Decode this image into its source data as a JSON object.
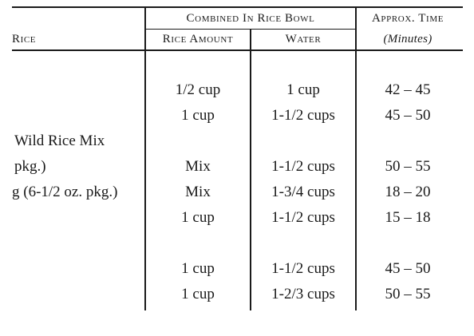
{
  "header": {
    "rice": "Rice",
    "combined": "Combined In Rice Bowl",
    "rice_amount": "Rice Amount",
    "water": "Water",
    "approx_time": "Approx. Time",
    "minutes": "(Minutes)"
  },
  "rows": [
    {
      "rice": "",
      "amount": "1/2 cup",
      "water": "1 cup",
      "time": "42 – 45"
    },
    {
      "rice": "",
      "amount": "1 cup",
      "water": "1-1/2 cups",
      "time": "45 – 50"
    },
    {
      "rice": "Wild Rice Mix",
      "amount": "",
      "water": "",
      "time": ""
    },
    {
      "rice": "pkg.)",
      "amount": "Mix",
      "water": "1-1/2 cups",
      "time": "50 – 55"
    },
    {
      "rice": "g (6-1/2 oz. pkg.)",
      "amount": "Mix",
      "water": "1-3/4 cups",
      "time": "18 – 20"
    },
    {
      "rice": "",
      "amount": "1 cup",
      "water": "1-1/2 cups",
      "time": "15 – 18"
    },
    {
      "rice": "",
      "amount": "1 cup",
      "water": "1-1/2 cups",
      "time": "45 – 50"
    },
    {
      "rice": "",
      "amount": "1 cup",
      "water": "1-2/3 cups",
      "time": "50 – 55"
    }
  ]
}
